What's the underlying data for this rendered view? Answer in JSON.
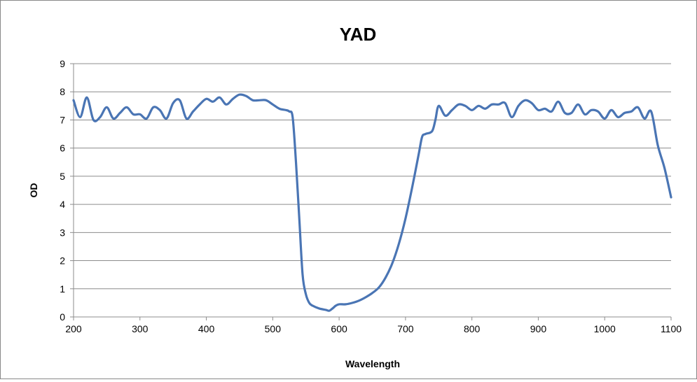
{
  "chart_data": {
    "type": "line",
    "title": "YAD",
    "xlabel": "Wavelength",
    "ylabel": "OD",
    "xlim": [
      200,
      1100
    ],
    "ylim": [
      0,
      9
    ],
    "x_ticks": [
      "200",
      "300",
      "400",
      "500",
      "600",
      "700",
      "800",
      "900",
      "1000",
      "1100"
    ],
    "y_ticks": [
      "0",
      "1",
      "2",
      "3",
      "4",
      "5",
      "6",
      "7",
      "8",
      "9"
    ],
    "grid": "horizontal",
    "legend": "none",
    "series_color": "#4a75b4",
    "series": [
      {
        "x": [
          200,
          210,
          220,
          230,
          240,
          250,
          260,
          270,
          280,
          290,
          300,
          310,
          320,
          330,
          340,
          350,
          360,
          370,
          380,
          390,
          400,
          410,
          420,
          430,
          440,
          450,
          460,
          470,
          480,
          490,
          500,
          510,
          520,
          525,
          530,
          535,
          540,
          545,
          550,
          555,
          560,
          570,
          580,
          585,
          590,
          595,
          600,
          610,
          620,
          630,
          640,
          650,
          660,
          670,
          680,
          690,
          700,
          710,
          720,
          725,
          730,
          740,
          745,
          750,
          760,
          770,
          780,
          790,
          800,
          810,
          820,
          830,
          840,
          850,
          860,
          870,
          880,
          890,
          900,
          910,
          920,
          930,
          940,
          950,
          960,
          970,
          980,
          990,
          1000,
          1010,
          1020,
          1030,
          1040,
          1050,
          1060,
          1070,
          1080,
          1090,
          1100
        ],
        "y": [
          7.7,
          7.1,
          7.8,
          7.0,
          7.1,
          7.45,
          7.05,
          7.25,
          7.45,
          7.2,
          7.2,
          7.05,
          7.45,
          7.35,
          7.05,
          7.6,
          7.7,
          7.05,
          7.3,
          7.55,
          7.75,
          7.65,
          7.8,
          7.55,
          7.75,
          7.9,
          7.85,
          7.7,
          7.7,
          7.7,
          7.55,
          7.4,
          7.35,
          7.3,
          7.1,
          5.5,
          3.5,
          1.5,
          0.8,
          0.5,
          0.4,
          0.3,
          0.25,
          0.22,
          0.3,
          0.4,
          0.45,
          0.45,
          0.5,
          0.58,
          0.7,
          0.85,
          1.05,
          1.4,
          1.9,
          2.6,
          3.5,
          4.6,
          5.8,
          6.4,
          6.5,
          6.6,
          7.0,
          7.5,
          7.15,
          7.35,
          7.55,
          7.5,
          7.35,
          7.5,
          7.4,
          7.55,
          7.55,
          7.6,
          7.1,
          7.5,
          7.7,
          7.6,
          7.35,
          7.4,
          7.3,
          7.65,
          7.25,
          7.25,
          7.55,
          7.2,
          7.35,
          7.3,
          7.05,
          7.35,
          7.1,
          7.25,
          7.3,
          7.45,
          7.05,
          7.3,
          6.1,
          5.3,
          4.25
        ]
      }
    ]
  }
}
